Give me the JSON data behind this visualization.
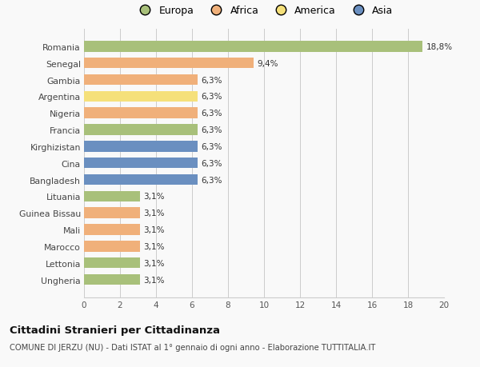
{
  "categories": [
    "Romania",
    "Senegal",
    "Gambia",
    "Argentina",
    "Nigeria",
    "Francia",
    "Kirghizistan",
    "Cina",
    "Bangladesh",
    "Lituania",
    "Guinea Bissau",
    "Mali",
    "Marocco",
    "Lettonia",
    "Ungheria"
  ],
  "values": [
    18.8,
    9.4,
    6.3,
    6.3,
    6.3,
    6.3,
    6.3,
    6.3,
    6.3,
    3.1,
    3.1,
    3.1,
    3.1,
    3.1,
    3.1
  ],
  "labels": [
    "18,8%",
    "9,4%",
    "6,3%",
    "6,3%",
    "6,3%",
    "6,3%",
    "6,3%",
    "6,3%",
    "6,3%",
    "3,1%",
    "3,1%",
    "3,1%",
    "3,1%",
    "3,1%",
    "3,1%"
  ],
  "colors": [
    "#a8c07a",
    "#f0b07a",
    "#f0b07a",
    "#f5e07a",
    "#f0b07a",
    "#a8c07a",
    "#6a8fc0",
    "#6a8fc0",
    "#6a8fc0",
    "#a8c07a",
    "#f0b07a",
    "#f0b07a",
    "#f0b07a",
    "#a8c07a",
    "#a8c07a"
  ],
  "legend": {
    "Europa": "#a8c07a",
    "Africa": "#f0b07a",
    "America": "#f5e07a",
    "Asia": "#6a8fc0"
  },
  "xlim": [
    0,
    20
  ],
  "xticks": [
    0,
    2,
    4,
    6,
    8,
    10,
    12,
    14,
    16,
    18,
    20
  ],
  "title": "Cittadini Stranieri per Cittadinanza",
  "subtitle": "COMUNE DI JERZU (NU) - Dati ISTAT al 1° gennaio di ogni anno - Elaborazione TUTTITALIA.IT",
  "background_color": "#f9f9f9",
  "bar_height": 0.65,
  "grid_color": "#cccccc"
}
